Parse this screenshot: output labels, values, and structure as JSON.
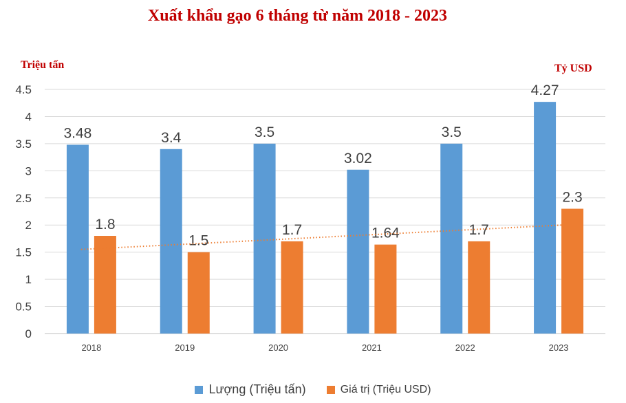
{
  "chart_data": {
    "type": "bar",
    "title": "Xuất khẩu gạo 6 tháng từ năm 2018 - 2023",
    "ylabel_left": "Triệu tấn",
    "ylabel_right": "Tỷ USD",
    "categories": [
      "2018",
      "2019",
      "2020",
      "2021",
      "2022",
      "2023"
    ],
    "y_ticks": [
      "0",
      "0.5",
      "1",
      "1.5",
      "2",
      "2.5",
      "3",
      "3.5",
      "4",
      "4.5"
    ],
    "ylim": [
      0,
      4.5
    ],
    "series": [
      {
        "name": "Lượng (Triệu tấn)",
        "color": "#5b9bd5",
        "values": [
          3.48,
          3.4,
          3.5,
          3.02,
          3.5,
          4.27
        ],
        "labels": [
          "3.48",
          "3.4",
          "3.5",
          "3.02",
          "3.5",
          "4.27"
        ]
      },
      {
        "name": "Giá trị (Triệu USD)",
        "color": "#ed7d31",
        "values": [
          1.8,
          1.5,
          1.7,
          1.64,
          1.7,
          2.3
        ],
        "labels": [
          "1.8",
          "1.5",
          "1.7",
          "1.64",
          "1.7",
          "2.3"
        ]
      }
    ],
    "trendline": {
      "series": "Giá trị (Triệu USD)",
      "style": "dotted",
      "color": "#ed7d31",
      "start": 1.55,
      "end": 2.0
    },
    "grid": true,
    "legend": "bottom"
  }
}
